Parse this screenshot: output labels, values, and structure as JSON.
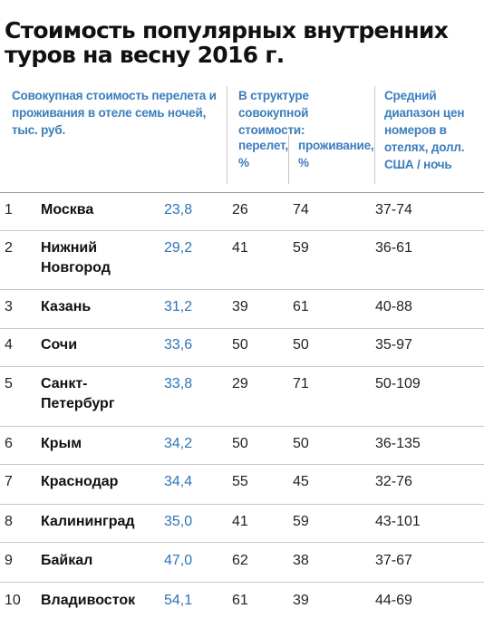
{
  "title": "Стоимость популярных внутренних туров на весну 2016 г.",
  "headers": {
    "total_cost": "Совокупная стоимость перелета и проживания в отеле семь ночей, тыс. руб.",
    "structure": "В структуре совокупной стоимости:",
    "flight": "перелет, %",
    "accommodation": "проживание, %",
    "price_range": "Средний диапазон цен номеров в отелях, долл. США / ночь"
  },
  "rows": [
    {
      "rank": "1",
      "city": "Москва",
      "cost": "23,8",
      "flight": "26",
      "accommodation": "74",
      "range": "37-74"
    },
    {
      "rank": "2",
      "city": "Нижний Новгород",
      "cost": "29,2",
      "flight": "41",
      "accommodation": "59",
      "range": "36-61"
    },
    {
      "rank": "3",
      "city": "Казань",
      "cost": "31,2",
      "flight": "39",
      "accommodation": "61",
      "range": "40-88"
    },
    {
      "rank": "4",
      "city": "Сочи",
      "cost": "33,6",
      "flight": "50",
      "accommodation": "50",
      "range": "35-97"
    },
    {
      "rank": "5",
      "city": "Санкт-Петербург",
      "cost": "33,8",
      "flight": "29",
      "accommodation": "71",
      "range": "50-109"
    },
    {
      "rank": "6",
      "city": "Крым",
      "cost": "34,2",
      "flight": "50",
      "accommodation": "50",
      "range": "36-135"
    },
    {
      "rank": "7",
      "city": "Краснодар",
      "cost": "34,4",
      "flight": "55",
      "accommodation": "45",
      "range": "32-76"
    },
    {
      "rank": "8",
      "city": "Калининград",
      "cost": "35,0",
      "flight": "41",
      "accommodation": "59",
      "range": "43-101"
    },
    {
      "rank": "9",
      "city": "Байкал",
      "cost": "47,0",
      "flight": "62",
      "accommodation": "38",
      "range": "37-67"
    },
    {
      "rank": "10",
      "city": "Владивосток",
      "cost": "54,1",
      "flight": "61",
      "accommodation": "39",
      "range": "44-69"
    }
  ]
}
